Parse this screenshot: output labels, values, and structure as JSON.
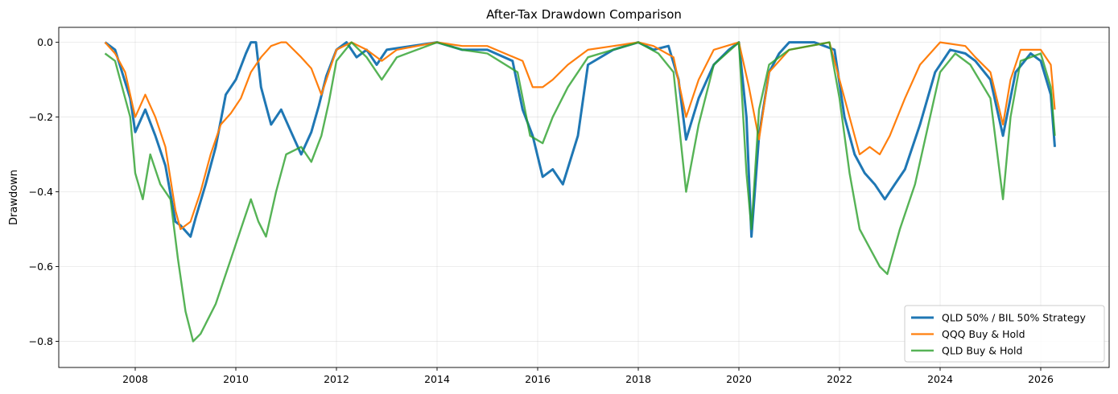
{
  "chart_data": {
    "type": "line",
    "title": "After-Tax Drawdown Comparison",
    "xlabel": "",
    "ylabel": "Drawdown",
    "xlim": [
      2006.48,
      2027.36
    ],
    "ylim": [
      -0.87,
      0.04
    ],
    "xticks": [
      2008,
      2010,
      2012,
      2014,
      2016,
      2018,
      2020,
      2022,
      2024,
      2026
    ],
    "xtick_labels": [
      "2008",
      "2010",
      "2012",
      "2014",
      "2016",
      "2018",
      "2020",
      "2022",
      "2024",
      "2026"
    ],
    "yticks": [
      0.0,
      -0.2,
      -0.4,
      -0.6,
      -0.8
    ],
    "ytick_labels": [
      "0.0",
      "−0.2",
      "−0.4",
      "−0.6",
      "−0.8"
    ],
    "grid": true,
    "legend_position": "bottom-right",
    "series": [
      {
        "name": "QLD 50% / BIL 50% Strategy",
        "color": "#1f77b4",
        "x": [
          2007.4,
          2007.6,
          2007.9,
          2008.0,
          2008.2,
          2008.4,
          2008.6,
          2008.8,
          2008.9,
          2009.1,
          2009.2,
          2009.4,
          2009.6,
          2009.8,
          2010.0,
          2010.2,
          2010.3,
          2010.4,
          2010.5,
          2010.7,
          2010.9,
          2011.1,
          2011.3,
          2011.5,
          2011.65,
          2011.8,
          2012.0,
          2012.2,
          2012.4,
          2012.6,
          2012.8,
          2013.0,
          2013.5,
          2014.0,
          2014.5,
          2015.0,
          2015.5,
          2015.7,
          2015.9,
          2016.1,
          2016.3,
          2016.5,
          2016.8,
          2017.0,
          2017.5,
          2018.0,
          2018.3,
          2018.6,
          2018.8,
          2018.95,
          2019.2,
          2019.5,
          2019.8,
          2020.0,
          2020.15,
          2020.25,
          2020.4,
          2020.6,
          2020.8,
          2021.0,
          2021.5,
          2021.9,
          2022.1,
          2022.3,
          2022.5,
          2022.7,
          2022.9,
          2023.1,
          2023.3,
          2023.6,
          2023.9,
          2024.2,
          2024.5,
          2024.7,
          2025.0,
          2025.25,
          2025.5,
          2025.8,
          2026.0,
          2026.2,
          2026.28
        ],
        "values": [
          0.0,
          -0.02,
          -0.15,
          -0.24,
          -0.18,
          -0.25,
          -0.33,
          -0.48,
          -0.49,
          -0.52,
          -0.47,
          -0.38,
          -0.28,
          -0.14,
          -0.1,
          -0.03,
          0.0,
          0.0,
          -0.12,
          -0.22,
          -0.18,
          -0.24,
          -0.3,
          -0.24,
          -0.17,
          -0.09,
          -0.02,
          0.0,
          -0.04,
          -0.02,
          -0.06,
          -0.02,
          -0.01,
          0.0,
          -0.02,
          -0.02,
          -0.05,
          -0.18,
          -0.25,
          -0.36,
          -0.34,
          -0.38,
          -0.25,
          -0.06,
          -0.02,
          0.0,
          -0.02,
          -0.01,
          -0.1,
          -0.26,
          -0.15,
          -0.06,
          -0.02,
          0.0,
          -0.2,
          -0.52,
          -0.25,
          -0.08,
          -0.03,
          0.0,
          0.0,
          -0.02,
          -0.2,
          -0.3,
          -0.35,
          -0.38,
          -0.42,
          -0.38,
          -0.34,
          -0.22,
          -0.08,
          -0.02,
          -0.03,
          -0.05,
          -0.1,
          -0.25,
          -0.08,
          -0.03,
          -0.05,
          -0.14,
          -0.28
        ]
      },
      {
        "name": "QQQ Buy & Hold",
        "color": "#ff7f0e",
        "x": [
          2007.4,
          2007.6,
          2007.8,
          2008.0,
          2008.2,
          2008.4,
          2008.6,
          2008.8,
          2008.9,
          2009.1,
          2009.3,
          2009.5,
          2009.7,
          2009.9,
          2010.1,
          2010.3,
          2010.5,
          2010.7,
          2010.9,
          2011.0,
          2011.3,
          2011.5,
          2011.7,
          2011.85,
          2012.0,
          2012.3,
          2012.6,
          2012.9,
          2013.2,
          2014.0,
          2014.5,
          2015.0,
          2015.7,
          2015.9,
          2016.1,
          2016.3,
          2016.6,
          2017.0,
          2018.0,
          2018.3,
          2018.7,
          2018.95,
          2019.2,
          2019.5,
          2020.0,
          2020.2,
          2020.4,
          2020.6,
          2021.0,
          2021.8,
          2022.0,
          2022.2,
          2022.4,
          2022.6,
          2022.8,
          2023.0,
          2023.3,
          2023.6,
          2024.0,
          2024.5,
          2024.7,
          2025.0,
          2025.25,
          2025.4,
          2025.6,
          2026.0,
          2026.2,
          2026.28
        ],
        "values": [
          0.0,
          -0.03,
          -0.08,
          -0.2,
          -0.14,
          -0.2,
          -0.28,
          -0.45,
          -0.5,
          -0.48,
          -0.4,
          -0.3,
          -0.22,
          -0.19,
          -0.15,
          -0.08,
          -0.04,
          -0.01,
          0.0,
          0.0,
          -0.04,
          -0.07,
          -0.14,
          -0.08,
          -0.02,
          0.0,
          -0.02,
          -0.05,
          -0.02,
          0.0,
          -0.01,
          -0.01,
          -0.05,
          -0.12,
          -0.12,
          -0.1,
          -0.06,
          -0.02,
          0.0,
          -0.01,
          -0.04,
          -0.2,
          -0.1,
          -0.02,
          0.0,
          -0.12,
          -0.26,
          -0.08,
          -0.02,
          0.0,
          -0.1,
          -0.2,
          -0.3,
          -0.28,
          -0.3,
          -0.25,
          -0.15,
          -0.06,
          0.0,
          -0.01,
          -0.04,
          -0.08,
          -0.22,
          -0.1,
          -0.02,
          -0.02,
          -0.06,
          -0.18
        ]
      },
      {
        "name": "QLD Buy & Hold",
        "color": "#2ca02c",
        "x": [
          2007.4,
          2007.6,
          2007.9,
          2008.0,
          2008.15,
          2008.3,
          2008.5,
          2008.7,
          2008.85,
          2009.0,
          2009.15,
          2009.3,
          2009.6,
          2009.9,
          2010.1,
          2010.3,
          2010.45,
          2010.6,
          2010.8,
          2011.0,
          2011.3,
          2011.5,
          2011.7,
          2011.85,
          2012.0,
          2012.3,
          2012.6,
          2012.9,
          2013.2,
          2014.0,
          2014.5,
          2015.0,
          2015.6,
          2015.85,
          2016.1,
          2016.3,
          2016.6,
          2017.0,
          2018.0,
          2018.4,
          2018.7,
          2018.95,
          2019.2,
          2019.5,
          2020.0,
          2020.15,
          2020.25,
          2020.4,
          2020.6,
          2021.0,
          2021.8,
          2022.0,
          2022.2,
          2022.4,
          2022.6,
          2022.8,
          2022.95,
          2023.2,
          2023.5,
          2023.8,
          2024.0,
          2024.3,
          2024.6,
          2025.0,
          2025.25,
          2025.4,
          2025.6,
          2026.0,
          2026.2,
          2026.28
        ],
        "values": [
          -0.03,
          -0.05,
          -0.2,
          -0.35,
          -0.42,
          -0.3,
          -0.38,
          -0.42,
          -0.58,
          -0.72,
          -0.8,
          -0.78,
          -0.7,
          -0.58,
          -0.5,
          -0.42,
          -0.48,
          -0.52,
          -0.4,
          -0.3,
          -0.28,
          -0.32,
          -0.25,
          -0.16,
          -0.05,
          0.0,
          -0.04,
          -0.1,
          -0.04,
          0.0,
          -0.02,
          -0.03,
          -0.08,
          -0.25,
          -0.27,
          -0.2,
          -0.12,
          -0.04,
          0.0,
          -0.03,
          -0.08,
          -0.4,
          -0.22,
          -0.06,
          0.0,
          -0.35,
          -0.5,
          -0.18,
          -0.06,
          -0.02,
          0.0,
          -0.15,
          -0.35,
          -0.5,
          -0.55,
          -0.6,
          -0.62,
          -0.5,
          -0.38,
          -0.2,
          -0.08,
          -0.03,
          -0.06,
          -0.15,
          -0.42,
          -0.2,
          -0.05,
          -0.03,
          -0.12,
          -0.25
        ]
      }
    ]
  }
}
